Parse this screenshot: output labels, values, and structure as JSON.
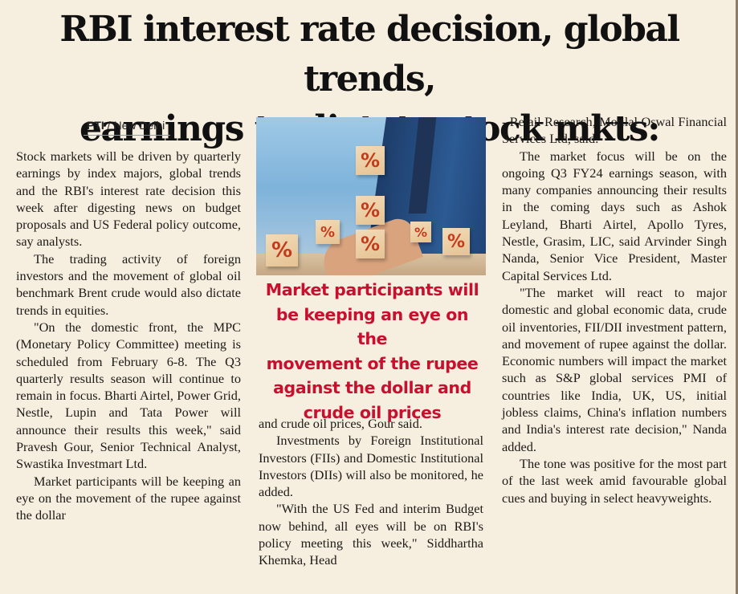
{
  "headline": {
    "line1": "RBI interest rate decision, global trends,",
    "line2": "earnings to dictate stock mkts: Analysts"
  },
  "byline": {
    "agency": "PTI",
    "separator": " / ",
    "location": "New Delhi"
  },
  "pull_quote": {
    "lines": [
      "Market participants will",
      "be keeping an eye on the",
      "movement of the rupee",
      "against the dollar and",
      "crude oil prices"
    ]
  },
  "photo": {
    "blocks": [
      "%",
      "%",
      "%",
      "%",
      "%",
      "%",
      "%"
    ],
    "accent_color": "#c43b1c"
  },
  "article": {
    "col1": [
      "Stock markets will be driven by quarterly earnings by index majors, global trends and the RBI's interest rate decision this week after digesting news on budget proposals and US Federal policy outcome, say analysts.",
      "The trading activity of foreign investors and the movement of global oil benchmark Brent crude would also dictate trends in equities.",
      "\"On the domestic front, the MPC (Monetary Policy Committee) meeting is scheduled from February 6-8. The Q3 quarterly results season will continue to remain in focus. Bharti Airtel, Power Grid, Nestle, Lupin and Tata Power will announce their results this week,\" said Pravesh Gour, Senior Technical Analyst, Swastika Investmart Ltd.",
      "Market participants will be keeping an eye on the movement of the rupee against the dollar"
    ],
    "col2": [
      "and crude oil prices, Gour said.",
      "Investments by Foreign Institutional Investors (FIIs) and Domestic Institutional Investors (DIIs) will also be monitored, he added.",
      "\"With the US Fed and interim Budget now behind, all eyes will be on RBI's policy meeting this week,\" Siddhartha Khemka, Head"
    ],
    "col3": [
      "- Retail Research, Motilal Oswal Financial Services Ltd, said.",
      "The market focus will be on the ongoing Q3 FY24 earnings season, with many companies announcing their results in the coming days such as Ashok Leyland, Bharti Airtel, Apollo Tyres, Nestle, Grasim, LIC, said Arvinder Singh Nanda, Senior Vice President, Master Capital Services Ltd.",
      "\"The market will react to major domestic and global economic data, crude oil inventories, FII/DII investment pattern, and movement of rupee against the dollar. Economic numbers will impact the market such as S&P global services PMI of countries like India, UK, US, initial jobless claims, China's inflation numbers and India's interest rate decision,\" Nanda added.",
      "The tone was positive for the most part of the last week amid favourable global cues and buying in select heavyweights."
    ]
  }
}
